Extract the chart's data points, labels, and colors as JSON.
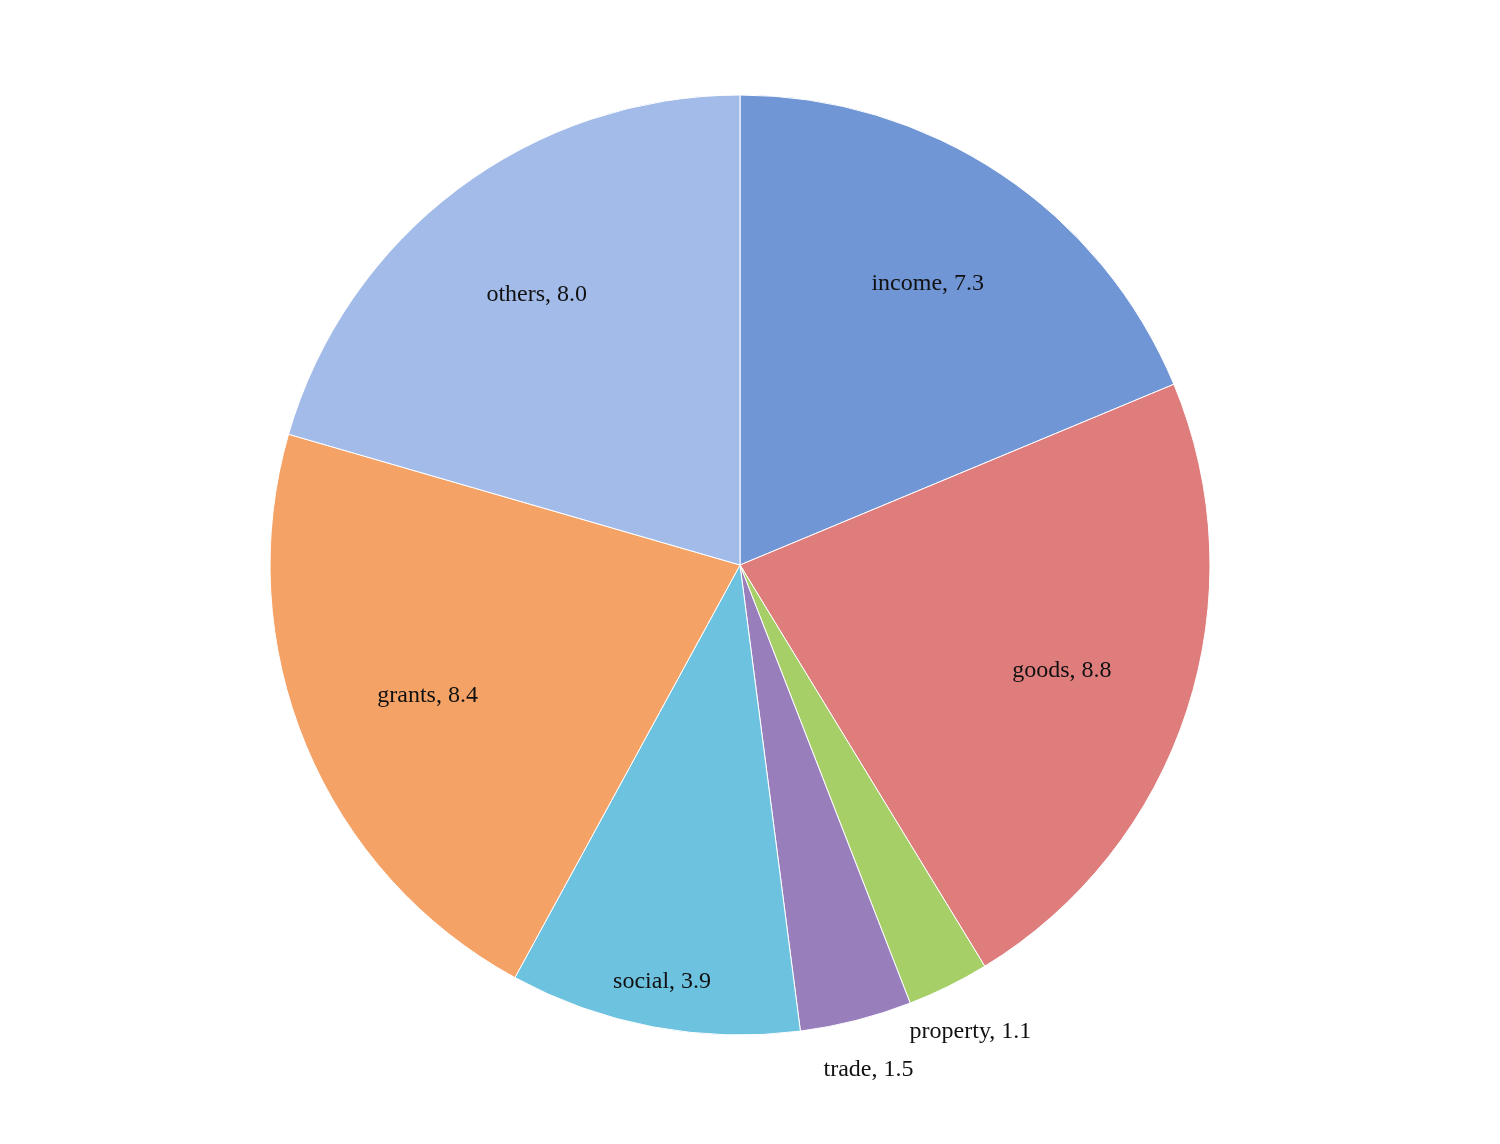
{
  "chart_data": {
    "type": "pie",
    "categories": [
      "income",
      "goods",
      "property",
      "trade",
      "social",
      "grants",
      "others"
    ],
    "values": [
      7.3,
      8.8,
      1.1,
      1.5,
      3.9,
      8.4,
      8.0
    ],
    "value_labels": [
      "7.3",
      "8.8",
      "1.1",
      "1.5",
      "3.9",
      "8.4",
      "8.0"
    ],
    "colors": [
      "#7096d6",
      "#de7d7c",
      "#a6cf68",
      "#987fbb",
      "#6cc2df",
      "#f5a266",
      "#a2bbe9"
    ]
  }
}
